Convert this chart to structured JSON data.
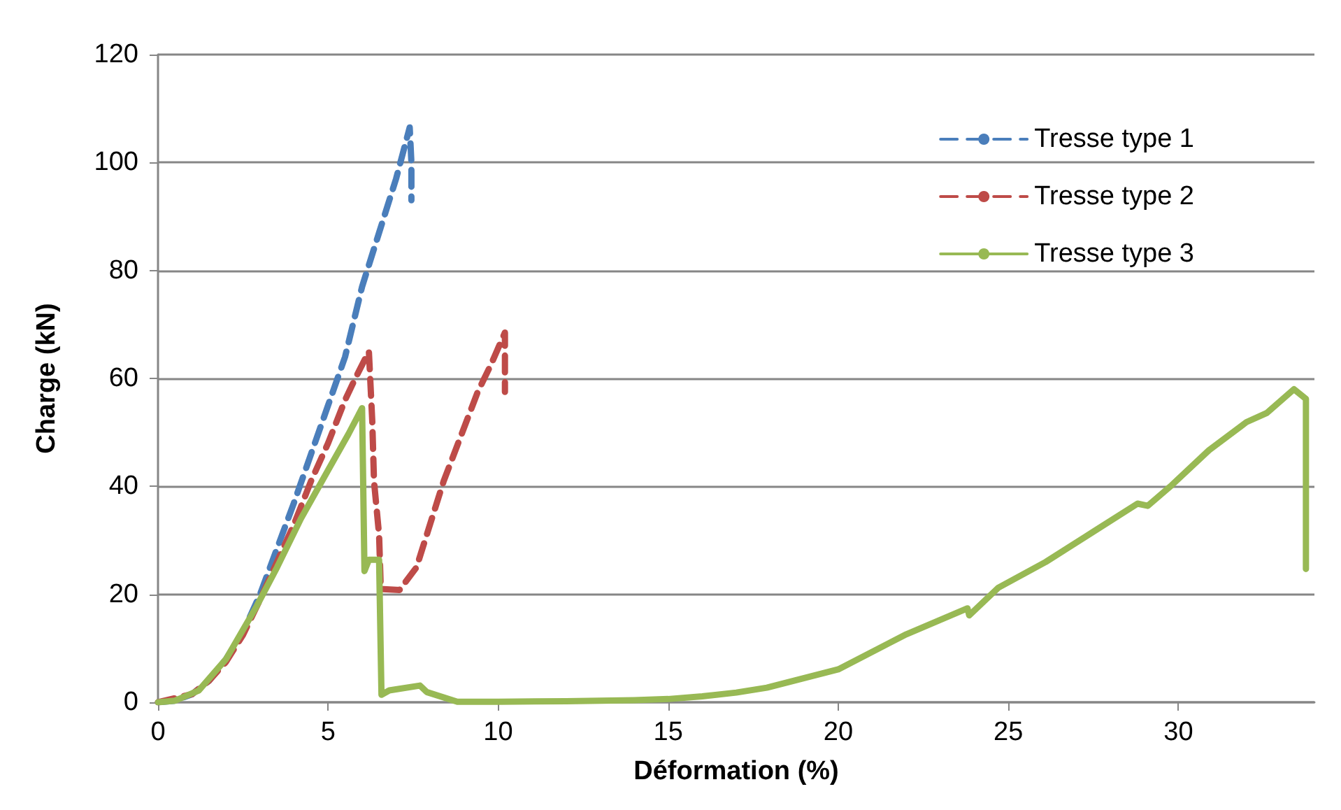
{
  "chart_data": {
    "type": "line",
    "xlabel": "Déformation (%)",
    "ylabel": "Charge (kN)",
    "xlim": [
      0,
      34
    ],
    "xticks": [
      0,
      5,
      10,
      15,
      20,
      25,
      30
    ],
    "ylim": [
      0,
      120
    ],
    "yticks": [
      0,
      20,
      40,
      60,
      80,
      100,
      120
    ],
    "grid": "y",
    "legend": "top right",
    "marker": "none",
    "series": [
      {
        "name": "Tresse type 1",
        "color": "#4a7ebb",
        "line_style": "dashed",
        "x": [
          0,
          0.5,
          1,
          1.5,
          2,
          2.5,
          3,
          3.5,
          4,
          4.5,
          5,
          5.5,
          6,
          6.5,
          7,
          7.4,
          7.45,
          7.45
        ],
        "values": [
          0,
          0.3,
          1.5,
          4,
          8,
          13,
          20,
          28.5,
          37,
          46,
          55,
          64,
          77,
          87,
          97,
          106.5,
          100,
          93
        ]
      },
      {
        "name": "Tresse type 2",
        "color": "#be4b48",
        "line_style": "dashed",
        "x": [
          0,
          1,
          1.5,
          2,
          2.5,
          3,
          3.5,
          4,
          4.5,
          5,
          5.5,
          5.8,
          6.2,
          6.3,
          6.35,
          6.5,
          6.55,
          7.1,
          7.6,
          8.4,
          9.4,
          9.8,
          10.2,
          10.2
        ],
        "values": [
          0,
          1.5,
          4,
          7.5,
          12.5,
          19,
          26,
          33,
          41,
          48,
          56,
          60,
          65,
          52,
          41,
          31,
          21,
          20.8,
          25,
          41,
          57.5,
          62.7,
          68.5,
          57.5
        ]
      },
      {
        "name": "Tresse type 3",
        "color": "#98b954",
        "line_style": "solid",
        "x": [
          0,
          0.5,
          1.2,
          2,
          2.9,
          3.5,
          4.2,
          5,
          5.6,
          6,
          6.07,
          6.2,
          6.5,
          6.57,
          6.8,
          7.7,
          7.9,
          8.8,
          10,
          12,
          14,
          15,
          16,
          17,
          17.9,
          20,
          22,
          23.8,
          23.85,
          24.7,
          26.1,
          27.5,
          28.8,
          29.1,
          29.8,
          30.9,
          32,
          32.6,
          33.4,
          33.75,
          33.75
        ],
        "values": [
          0,
          0.3,
          2.2,
          8,
          17.8,
          25,
          34,
          43,
          49.7,
          54.5,
          24.3,
          26.4,
          26.4,
          1.4,
          2.2,
          3.1,
          1.9,
          0.1,
          0.1,
          0.2,
          0.4,
          0.6,
          1.1,
          1.8,
          2.7,
          6.1,
          12.6,
          17.4,
          16.1,
          21.2,
          26,
          31.6,
          36.8,
          36.4,
          40.2,
          46.7,
          51.9,
          53.6,
          58,
          56.2,
          24.7
        ]
      }
    ]
  }
}
